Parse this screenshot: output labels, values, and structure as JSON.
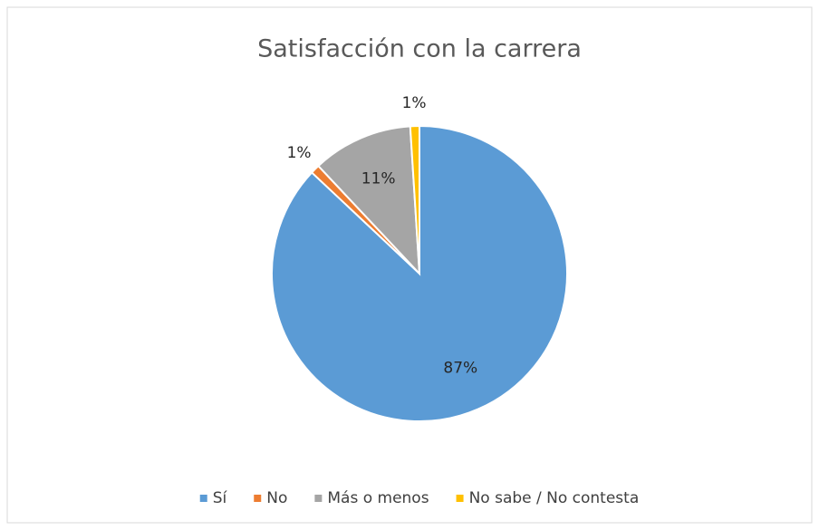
{
  "chart_data": {
    "type": "pie",
    "title": "Satisfacción con la carrera",
    "categories": [
      "Sí",
      "No",
      "Más o menos",
      "No sabe / No contesta"
    ],
    "values": [
      87,
      1,
      11,
      1
    ],
    "value_labels": [
      "87%",
      "1%",
      "11%",
      "1%"
    ],
    "colors": [
      "#5b9bd5",
      "#ed7d31",
      "#a5a5a5",
      "#ffc000"
    ],
    "legend": "bottom"
  }
}
